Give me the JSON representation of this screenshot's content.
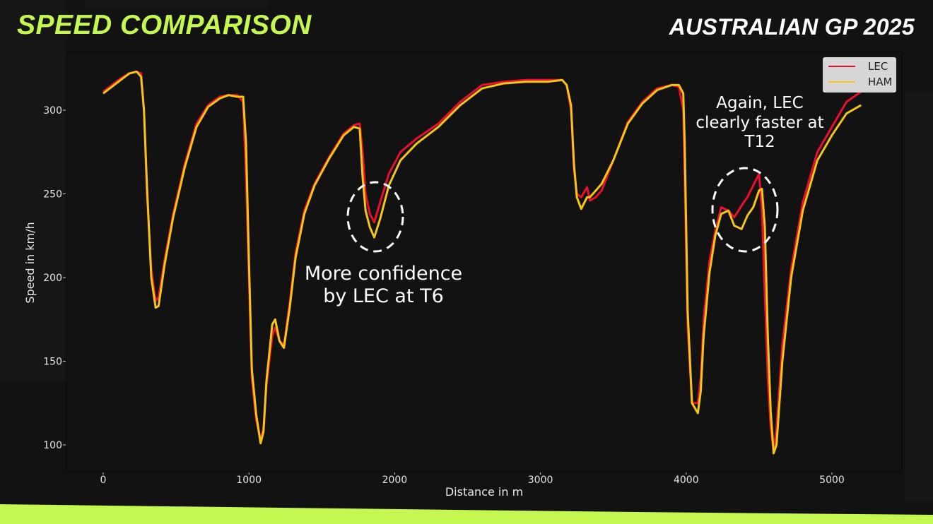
{
  "header": {
    "title": "SPEED COMPARISON",
    "event": "AUSTRALIAN GP 2025"
  },
  "colors": {
    "accent": "#c4f74f",
    "background": "#121212",
    "lec": "#e8102e",
    "ham": "#f5c518"
  },
  "legend": {
    "items": [
      {
        "label": "LEC",
        "color": "#e8102e"
      },
      {
        "label": "HAM",
        "color": "#f5c518"
      }
    ]
  },
  "annotations": {
    "t6": "More confidence by LEC at T6",
    "t12": "Again, LEC clearly faster at T12"
  },
  "chart_data": {
    "type": "line",
    "title": "SPEED COMPARISON",
    "subtitle": "AUSTRALIAN GP 2025",
    "xlabel": "Distance in m",
    "ylabel": "Speed in km/h",
    "xlim": [
      -260,
      5480
    ],
    "ylim": [
      83,
      335
    ],
    "xticks": [
      0,
      1000,
      2000,
      3000,
      4000,
      5000
    ],
    "yticks": [
      100,
      150,
      200,
      250,
      300
    ],
    "grid": false,
    "legend_position": "upper right",
    "annotations": [
      {
        "text": "More confidence by LEC at T6",
        "x": 1870,
        "y": 235
      },
      {
        "text": "Again, LEC clearly faster at T12",
        "x": 4420,
        "y": 240
      }
    ],
    "series": [
      {
        "name": "LEC",
        "color": "#e8102e",
        "x": [
          0,
          60,
          120,
          180,
          230,
          260,
          280,
          300,
          330,
          360,
          380,
          420,
          480,
          560,
          640,
          720,
          800,
          860,
          920,
          960,
          980,
          1000,
          1020,
          1050,
          1080,
          1100,
          1120,
          1160,
          1180,
          1210,
          1240,
          1280,
          1320,
          1380,
          1450,
          1550,
          1650,
          1720,
          1760,
          1780,
          1800,
          1830,
          1860,
          1900,
          1960,
          2040,
          2150,
          2300,
          2450,
          2600,
          2750,
          2900,
          3050,
          3150,
          3180,
          3210,
          3230,
          3250,
          3280,
          3320,
          3340,
          3360,
          3380,
          3420,
          3500,
          3600,
          3700,
          3800,
          3900,
          3950,
          3980,
          3990,
          4010,
          4040,
          4080,
          4100,
          4120,
          4160,
          4200,
          4240,
          4290,
          4330,
          4380,
          4420,
          4460,
          4500,
          4520,
          4540,
          4560,
          4580,
          4600,
          4620,
          4660,
          4720,
          4800,
          4900,
          5000,
          5100,
          5200
        ],
        "y": [
          311,
          315,
          319,
          322,
          323,
          322,
          300,
          250,
          205,
          186,
          188,
          210,
          238,
          268,
          292,
          303,
          308,
          309,
          309,
          305,
          260,
          200,
          140,
          115,
          103,
          110,
          135,
          165,
          170,
          162,
          160,
          185,
          215,
          240,
          256,
          272,
          286,
          291,
          292,
          275,
          250,
          238,
          233,
          245,
          262,
          275,
          283,
          292,
          305,
          315,
          317,
          318,
          318,
          318,
          315,
          300,
          265,
          250,
          248,
          254,
          246,
          247,
          248,
          252,
          270,
          293,
          305,
          313,
          315,
          314,
          300,
          260,
          170,
          125,
          125,
          140,
          175,
          210,
          228,
          242,
          240,
          236,
          243,
          248,
          255,
          262,
          240,
          190,
          140,
          110,
          97,
          110,
          160,
          205,
          245,
          275,
          290,
          305,
          311
        ]
      },
      {
        "name": "HAM",
        "color": "#f5c518",
        "x": [
          0,
          60,
          120,
          180,
          230,
          260,
          280,
          300,
          330,
          360,
          380,
          420,
          480,
          560,
          640,
          720,
          800,
          860,
          920,
          960,
          980,
          1000,
          1020,
          1050,
          1080,
          1100,
          1120,
          1160,
          1180,
          1210,
          1240,
          1280,
          1320,
          1380,
          1450,
          1550,
          1650,
          1720,
          1760,
          1780,
          1800,
          1830,
          1860,
          1900,
          1960,
          2040,
          2150,
          2300,
          2450,
          2600,
          2750,
          2900,
          3050,
          3150,
          3180,
          3210,
          3230,
          3250,
          3280,
          3320,
          3340,
          3360,
          3380,
          3420,
          3500,
          3600,
          3700,
          3800,
          3900,
          3950,
          3980,
          3990,
          4010,
          4040,
          4080,
          4100,
          4120,
          4160,
          4200,
          4240,
          4290,
          4330,
          4380,
          4420,
          4460,
          4500,
          4520,
          4540,
          4560,
          4580,
          4600,
          4620,
          4660,
          4720,
          4800,
          4900,
          5000,
          5100,
          5200
        ],
        "y": [
          310,
          314,
          318,
          322,
          323,
          320,
          300,
          255,
          200,
          182,
          183,
          207,
          236,
          266,
          290,
          302,
          307,
          309,
          308,
          308,
          280,
          210,
          145,
          118,
          101,
          108,
          138,
          172,
          175,
          162,
          158,
          182,
          212,
          238,
          255,
          271,
          285,
          290,
          289,
          260,
          240,
          230,
          224,
          235,
          255,
          270,
          280,
          290,
          303,
          313,
          316,
          317,
          317,
          318,
          315,
          303,
          268,
          248,
          241,
          248,
          248,
          250,
          252,
          256,
          270,
          292,
          304,
          312,
          315,
          315,
          310,
          280,
          180,
          125,
          119,
          132,
          165,
          203,
          225,
          238,
          240,
          231,
          229,
          237,
          242,
          252,
          253,
          230,
          165,
          120,
          95,
          100,
          150,
          200,
          240,
          270,
          285,
          298,
          303
        ]
      }
    ]
  }
}
